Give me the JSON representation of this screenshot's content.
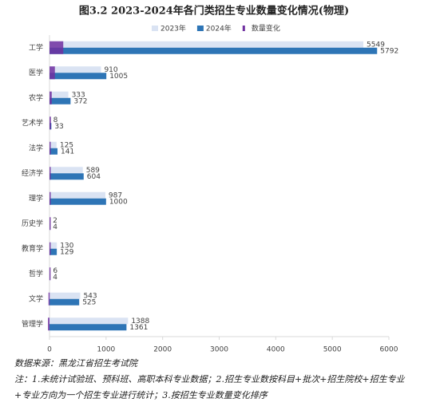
{
  "chart_data": {
    "type": "bar",
    "orientation": "horizontal",
    "title": "图3.2 2023-2024年各门类招生专业数量变化情况(物理)",
    "categories": [
      "工学",
      "医学",
      "农学",
      "艺术学",
      "法学",
      "经济学",
      "理学",
      "历史学",
      "教育学",
      "哲学",
      "文学",
      "管理学"
    ],
    "series": [
      {
        "name": "2023年",
        "color": "#dae3f3",
        "values": [
          5549,
          910,
          333,
          8,
          125,
          589,
          987,
          2,
          130,
          6,
          543,
          1388
        ]
      },
      {
        "name": "2024年",
        "color": "#2e75b6",
        "values": [
          5792,
          1005,
          372,
          33,
          141,
          604,
          1000,
          4,
          129,
          4,
          525,
          1361
        ]
      },
      {
        "name": "数量变化",
        "color": "#7030a0",
        "values": [
          243,
          95,
          39,
          25,
          16,
          15,
          13,
          2,
          -1,
          -2,
          -18,
          -27
        ]
      }
    ],
    "xlim": [
      0,
      6000
    ],
    "xticks": [
      0,
      1000,
      2000,
      3000,
      4000,
      5000,
      6000
    ],
    "source": "数据来源：黑龙江省招生考试院",
    "note": "注：1.未统计试验班、预科班、高职本科专业数据；2.招生专业数按科目+批次+招生院校+招生专业+专业方向为一个招生专业进行统计；3.按招生专业数量变化排序"
  }
}
